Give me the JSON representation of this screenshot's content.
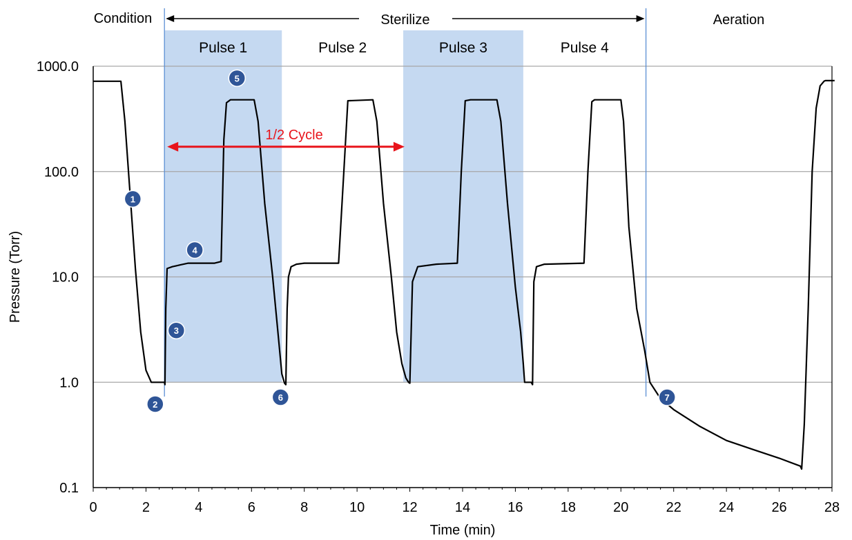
{
  "chart_data": {
    "type": "line",
    "title": "",
    "xlabel": "Time (min)",
    "ylabel": "Pressure (Torr)",
    "xlim": [
      0,
      28
    ],
    "ylim": [
      0.1,
      1000
    ],
    "yscale": "log",
    "x_ticks": [
      0,
      2,
      4,
      6,
      8,
      10,
      12,
      14,
      16,
      18,
      20,
      22,
      24,
      26,
      28
    ],
    "y_ticks": [
      0.1,
      1,
      10,
      100,
      1000
    ],
    "y_tick_labels": [
      "0.1",
      "1.0",
      "10.0",
      "100.0",
      "1000.0"
    ],
    "grid": "horizontal",
    "series": [
      {
        "color": "#000000",
        "x": [
          0,
          1.05,
          1.2,
          1.4,
          1.6,
          1.8,
          2.0,
          2.2,
          2.7,
          2.72,
          2.75,
          2.8,
          3.0,
          3.3,
          3.6,
          4.6,
          4.85,
          4.95,
          5.05,
          5.2,
          6.1,
          6.25,
          6.5,
          6.8,
          7.0,
          7.15,
          7.25,
          7.3,
          7.35,
          7.4,
          7.5,
          7.7,
          8.0,
          9.3,
          9.5,
          9.65,
          10.6,
          10.75,
          11.0,
          11.3,
          11.5,
          11.7,
          11.85,
          11.95,
          12.0,
          12.1,
          12.3,
          13.0,
          13.8,
          13.95,
          14.1,
          14.3,
          15.3,
          15.45,
          15.7,
          16.0,
          16.2,
          16.3,
          16.35,
          16.6,
          16.65,
          16.7,
          16.8,
          17.1,
          18.6,
          18.75,
          18.9,
          19.0,
          20.0,
          20.1,
          20.3,
          20.6,
          20.9,
          21.1,
          21.5,
          22.0,
          23.0,
          24.0,
          25.0,
          26.0,
          26.8,
          26.85,
          26.95,
          27.1,
          27.25,
          27.4,
          27.55,
          27.7,
          27.75,
          28.1
        ],
        "values": [
          720,
          720,
          300,
          60,
          12,
          3,
          1.3,
          1.0,
          1.0,
          0.95,
          5,
          12,
          12.5,
          13,
          13.5,
          13.5,
          14,
          200,
          450,
          480,
          480,
          300,
          50,
          10,
          3,
          1.2,
          0.98,
          0.95,
          5,
          10,
          12.5,
          13.2,
          13.5,
          13.5,
          100,
          470,
          480,
          300,
          50,
          10,
          3,
          1.5,
          1.1,
          1.0,
          0.98,
          9,
          12.5,
          13.2,
          13.5,
          100,
          470,
          480,
          480,
          300,
          50,
          8,
          3,
          1.5,
          1.0,
          1.0,
          0.95,
          9,
          12.5,
          13.2,
          13.5,
          100,
          460,
          480,
          480,
          300,
          30,
          5,
          2,
          1.0,
          0.7,
          0.55,
          0.38,
          0.28,
          0.23,
          0.19,
          0.16,
          0.15,
          0.4,
          5,
          100,
          400,
          650,
          720,
          730,
          730
        ]
      }
    ],
    "phases": [
      "Condition",
      "Sterilize",
      "Aeration"
    ],
    "phase_boundaries": [
      2.7,
      20.95
    ],
    "pulses": [
      {
        "label": "Pulse 1",
        "x_start": 2.7,
        "x_end": 7.15,
        "shaded": true
      },
      {
        "label": "Pulse 2",
        "x_start": 7.15,
        "x_end": 11.75,
        "shaded": false
      },
      {
        "label": "Pulse 3",
        "x_start": 11.75,
        "x_end": 16.3,
        "shaded": true
      },
      {
        "label": "Pulse  4",
        "x_start": 16.3,
        "x_end": 20.95,
        "shaded": false
      }
    ],
    "shade_ylim": [
      1,
      1000
    ],
    "shade_color": "#c5d9f1",
    "half_cycle": {
      "label": "1/2 Cycle",
      "x_start": 2.7,
      "x_end": 11.8,
      "y": 200,
      "color": "#e8141b"
    },
    "markers": [
      {
        "label": "1",
        "x": 1.5,
        "y": 55
      },
      {
        "label": "2",
        "x": 2.35,
        "y": 0.62
      },
      {
        "label": "3",
        "x": 3.15,
        "y": 3.1
      },
      {
        "label": "4",
        "x": 3.85,
        "y": 18
      },
      {
        "label": "5",
        "x": 5.45,
        "y": 770
      },
      {
        "label": "6",
        "x": 7.1,
        "y": 0.72
      },
      {
        "label": "7",
        "x": 21.75,
        "y": 0.72
      }
    ],
    "marker_color": "#2f5597"
  }
}
